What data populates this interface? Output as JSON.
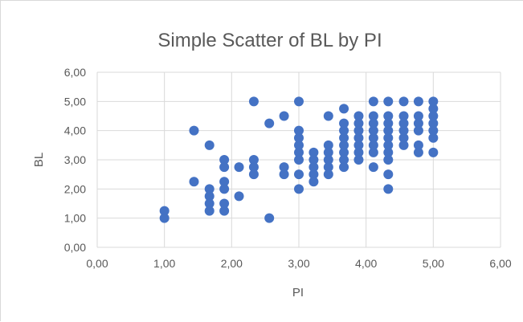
{
  "chart_data": {
    "type": "scatter",
    "title": "Simple Scatter of BL by PI",
    "xlabel": "PI",
    "ylabel": "BL",
    "xlim": [
      0,
      6
    ],
    "ylim": [
      0,
      6
    ],
    "x_ticks": [
      "0,00",
      "1,00",
      "2,00",
      "3,00",
      "4,00",
      "5,00",
      "6,00"
    ],
    "y_ticks": [
      "0,00",
      "1,00",
      "2,00",
      "3,00",
      "4,00",
      "5,00",
      "6,00"
    ],
    "grid": true,
    "legend": "none",
    "marker_color": "#4472C4",
    "points": [
      [
        1.0,
        1.0
      ],
      [
        1.0,
        1.25
      ],
      [
        1.44,
        2.25
      ],
      [
        1.44,
        4.0
      ],
      [
        1.67,
        1.25
      ],
      [
        1.67,
        1.5
      ],
      [
        1.67,
        1.75
      ],
      [
        1.67,
        2.0
      ],
      [
        1.67,
        3.5
      ],
      [
        1.89,
        1.25
      ],
      [
        1.89,
        1.5
      ],
      [
        1.89,
        2.0
      ],
      [
        1.89,
        2.25
      ],
      [
        1.89,
        2.75
      ],
      [
        1.89,
        3.0
      ],
      [
        2.11,
        1.75
      ],
      [
        2.11,
        2.75
      ],
      [
        2.33,
        2.5
      ],
      [
        2.33,
        2.75
      ],
      [
        2.33,
        3.0
      ],
      [
        2.33,
        5.0
      ],
      [
        2.56,
        1.0
      ],
      [
        2.56,
        4.25
      ],
      [
        2.78,
        2.5
      ],
      [
        2.78,
        2.75
      ],
      [
        2.78,
        4.5
      ],
      [
        3.0,
        2.0
      ],
      [
        3.0,
        2.5
      ],
      [
        3.0,
        3.0
      ],
      [
        3.0,
        3.25
      ],
      [
        3.0,
        3.5
      ],
      [
        3.0,
        3.75
      ],
      [
        3.0,
        4.0
      ],
      [
        3.0,
        5.0
      ],
      [
        3.22,
        2.25
      ],
      [
        3.22,
        2.5
      ],
      [
        3.22,
        2.75
      ],
      [
        3.22,
        3.0
      ],
      [
        3.22,
        3.25
      ],
      [
        3.44,
        2.5
      ],
      [
        3.44,
        2.75
      ],
      [
        3.44,
        3.0
      ],
      [
        3.44,
        3.25
      ],
      [
        3.44,
        3.5
      ],
      [
        3.44,
        4.5
      ],
      [
        3.67,
        2.75
      ],
      [
        3.67,
        3.0
      ],
      [
        3.67,
        3.25
      ],
      [
        3.67,
        3.5
      ],
      [
        3.67,
        3.75
      ],
      [
        3.67,
        4.0
      ],
      [
        3.67,
        4.25
      ],
      [
        3.67,
        4.75
      ],
      [
        3.89,
        3.0
      ],
      [
        3.89,
        3.25
      ],
      [
        3.89,
        3.5
      ],
      [
        3.89,
        3.75
      ],
      [
        3.89,
        4.0
      ],
      [
        3.89,
        4.25
      ],
      [
        3.89,
        4.5
      ],
      [
        4.11,
        2.75
      ],
      [
        4.11,
        3.25
      ],
      [
        4.11,
        3.5
      ],
      [
        4.11,
        3.75
      ],
      [
        4.11,
        4.0
      ],
      [
        4.11,
        4.25
      ],
      [
        4.11,
        4.5
      ],
      [
        4.11,
        5.0
      ],
      [
        4.33,
        2.0
      ],
      [
        4.33,
        2.5
      ],
      [
        4.33,
        3.0
      ],
      [
        4.33,
        3.25
      ],
      [
        4.33,
        3.5
      ],
      [
        4.33,
        3.75
      ],
      [
        4.33,
        4.0
      ],
      [
        4.33,
        4.25
      ],
      [
        4.33,
        4.5
      ],
      [
        4.33,
        5.0
      ],
      [
        4.56,
        3.5
      ],
      [
        4.56,
        3.75
      ],
      [
        4.56,
        4.0
      ],
      [
        4.56,
        4.25
      ],
      [
        4.56,
        4.5
      ],
      [
        4.56,
        5.0
      ],
      [
        4.78,
        3.25
      ],
      [
        4.78,
        3.5
      ],
      [
        4.78,
        4.0
      ],
      [
        4.78,
        4.25
      ],
      [
        4.78,
        4.5
      ],
      [
        4.78,
        5.0
      ],
      [
        5.0,
        3.25
      ],
      [
        5.0,
        3.75
      ],
      [
        5.0,
        4.0
      ],
      [
        5.0,
        4.25
      ],
      [
        5.0,
        4.5
      ],
      [
        5.0,
        4.75
      ],
      [
        5.0,
        5.0
      ]
    ]
  }
}
